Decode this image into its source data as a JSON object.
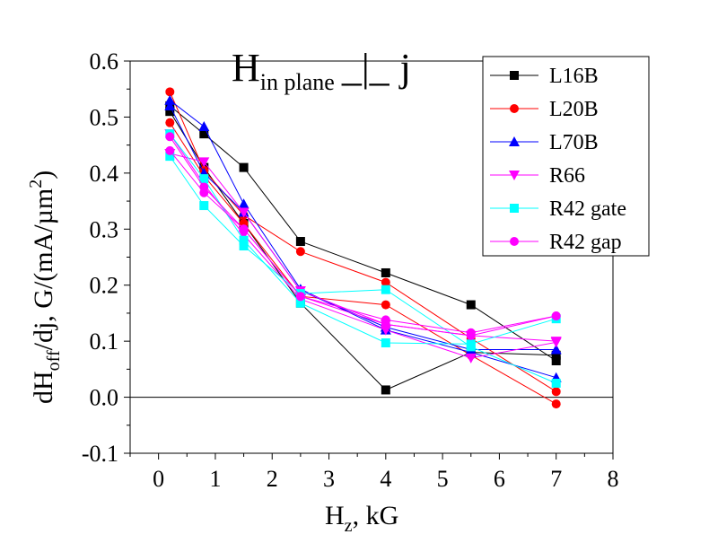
{
  "chart_data": {
    "type": "line",
    "title": {
      "main": "H",
      "subscript": "in plane",
      "symbol": "_|_",
      "suffix": "j"
    },
    "xlabel": {
      "main": "H",
      "subscript": "z",
      "suffix": ", kG"
    },
    "ylabel": {
      "prefix": "dH",
      "subscript": "off",
      "middle": "/dj, G/(mA/µm",
      "superscript": "2",
      "suffix": ")"
    },
    "xlim": [
      -0.5,
      8
    ],
    "ylim": [
      -0.1,
      0.6
    ],
    "xticks": [
      0,
      1,
      2,
      3,
      4,
      5,
      6,
      7,
      8
    ],
    "yticks": [
      -0.1,
      0.0,
      0.1,
      0.2,
      0.3,
      0.4,
      0.5,
      0.6
    ],
    "xtick_labels": [
      "0",
      "1",
      "2",
      "3",
      "4",
      "5",
      "6",
      "7",
      "8"
    ],
    "ytick_labels": [
      "-0.1",
      "0.0",
      "0.1",
      "0.2",
      "0.3",
      "0.4",
      "0.5",
      "0.6"
    ],
    "reference_line": 0,
    "legend_position": "top-right",
    "grid": false,
    "series": [
      {
        "name": "L16B",
        "color": "#000000",
        "marker": "square",
        "lines": [
          [
            [
              0.2,
              0.52
            ],
            [
              0.8,
              0.47
            ],
            [
              1.5,
              0.41
            ],
            [
              2.5,
              0.278
            ],
            [
              4.0,
              0.222
            ],
            [
              5.5,
              0.165
            ],
            [
              7.0,
              0.065
            ]
          ],
          [
            [
              0.2,
              0.51
            ],
            [
              0.8,
              0.41
            ],
            [
              1.5,
              0.31
            ],
            [
              2.5,
              0.168
            ],
            [
              4.0,
              0.013
            ],
            [
              5.5,
              0.08
            ],
            [
              7.0,
              0.075
            ]
          ]
        ]
      },
      {
        "name": "L20B",
        "color": "#ff0000",
        "marker": "circle",
        "lines": [
          [
            [
              0.2,
              0.545
            ],
            [
              0.8,
              0.405
            ],
            [
              1.5,
              0.325
            ],
            [
              2.5,
              0.26
            ],
            [
              4.0,
              0.205
            ],
            [
              5.5,
              0.105
            ],
            [
              7.0,
              0.01
            ]
          ],
          [
            [
              0.2,
              0.49
            ],
            [
              0.8,
              0.395
            ],
            [
              1.5,
              0.31
            ],
            [
              2.5,
              0.18
            ],
            [
              4.0,
              0.165
            ],
            [
              5.5,
              0.075
            ],
            [
              7.0,
              -0.012
            ]
          ]
        ]
      },
      {
        "name": "L70B",
        "color": "#0000ff",
        "marker": "triangle-up",
        "lines": [
          [
            [
              0.2,
              0.53
            ],
            [
              0.8,
              0.483
            ],
            [
              1.5,
              0.345
            ],
            [
              2.5,
              0.193
            ],
            [
              4.0,
              0.12
            ],
            [
              5.5,
              0.08
            ],
            [
              7.0,
              0.035
            ]
          ],
          [
            [
              0.2,
              0.52
            ],
            [
              0.8,
              0.4
            ],
            [
              1.5,
              0.33
            ],
            [
              2.5,
              0.19
            ],
            [
              4.0,
              0.125
            ],
            [
              5.5,
              0.085
            ],
            [
              7.0,
              0.085
            ]
          ]
        ]
      },
      {
        "name": "R66",
        "color": "#ff00ff",
        "marker": "triangle-down",
        "lines": [
          [
            [
              0.2,
              0.435
            ],
            [
              0.8,
              0.42
            ],
            [
              1.5,
              0.33
            ],
            [
              2.5,
              0.19
            ],
            [
              4.0,
              0.13
            ],
            [
              5.5,
              0.11
            ],
            [
              7.0,
              0.1
            ]
          ],
          [
            [
              0.2,
              0.47
            ],
            [
              0.8,
              0.38
            ],
            [
              1.5,
              0.29
            ],
            [
              2.5,
              0.175
            ],
            [
              4.0,
              0.12
            ],
            [
              5.5,
              0.07
            ],
            [
              7.0,
              0.098
            ]
          ]
        ]
      },
      {
        "name": "R42 gate",
        "color": "#00ffff",
        "marker": "square",
        "lines": [
          [
            [
              0.2,
              0.43
            ],
            [
              0.8,
              0.342
            ],
            [
              1.5,
              0.27
            ],
            [
              2.5,
              0.185
            ],
            [
              4.0,
              0.192
            ],
            [
              5.5,
              0.09
            ],
            [
              7.0,
              0.025
            ]
          ],
          [
            [
              0.2,
              0.47
            ],
            [
              0.8,
              0.39
            ],
            [
              1.5,
              0.28
            ],
            [
              2.5,
              0.168
            ],
            [
              4.0,
              0.097
            ],
            [
              5.5,
              0.095
            ],
            [
              7.0,
              0.14
            ]
          ]
        ]
      },
      {
        "name": "R42 gap",
        "color": "#ff00ff",
        "marker": "circle",
        "lines": [
          [
            [
              0.2,
              0.44
            ],
            [
              0.8,
              0.365
            ],
            [
              1.5,
              0.3
            ],
            [
              2.5,
              0.18
            ],
            [
              4.0,
              0.138
            ],
            [
              5.5,
              0.115
            ],
            [
              7.0,
              0.145
            ]
          ],
          [
            [
              0.2,
              0.465
            ],
            [
              0.8,
              0.375
            ],
            [
              1.5,
              0.3
            ],
            [
              2.5,
              0.18
            ],
            [
              4.0,
              0.13
            ],
            [
              5.5,
              0.11
            ],
            [
              7.0,
              0.145
            ]
          ]
        ]
      }
    ]
  }
}
